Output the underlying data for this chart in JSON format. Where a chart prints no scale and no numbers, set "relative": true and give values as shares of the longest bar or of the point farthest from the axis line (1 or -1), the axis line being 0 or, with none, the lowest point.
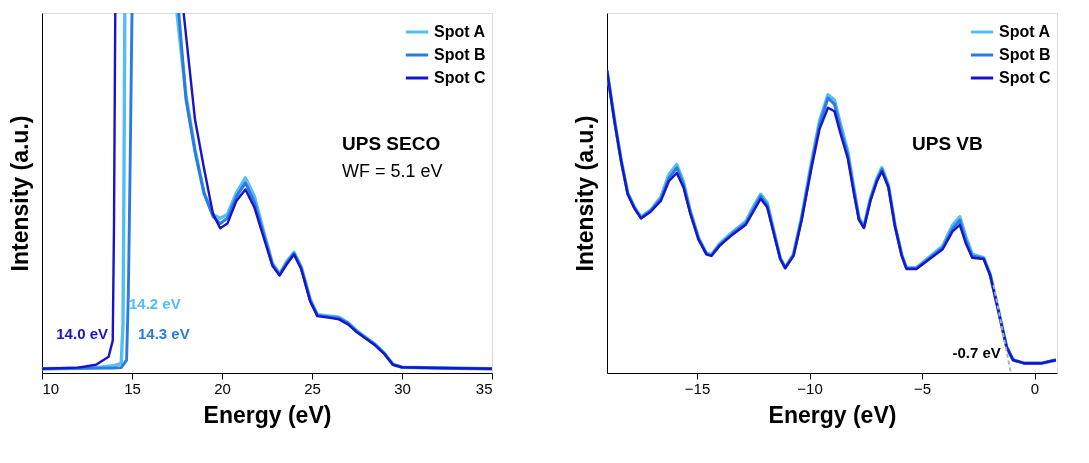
{
  "chart_data": [
    {
      "type": "line",
      "relative": true,
      "xlabel": "Energy (eV)",
      "ylabel": "Intensity (a.u.)",
      "xlim": [
        10,
        35
      ],
      "xticks": [
        10,
        15,
        20,
        25,
        30,
        35
      ],
      "tick_labels": "x",
      "grid": false,
      "legend": "top right",
      "marker": "none",
      "line_style": "solid",
      "annotations": [
        {
          "text": "14.0 eV",
          "x": 14.0,
          "y": 0.02
        },
        "14.2 eV",
        "14.3 eV",
        "UPS SECO",
        "WF = 5.1 eV"
      ],
      "series": [
        {
          "name": "Spot A",
          "color": "#55bdf5",
          "x": [
            10,
            12,
            13,
            14,
            14.4,
            14.5,
            14.55,
            14.6,
            16,
            17.5,
            18.0,
            18.5,
            19,
            19.5,
            19.9,
            20.3,
            20.8,
            21.3,
            21.8,
            22.3,
            22.8,
            23.2,
            23.6,
            24.0,
            24.4,
            24.9,
            25.3,
            26.0,
            26.5,
            27.0,
            27.5,
            28.0,
            28.5,
            29.0,
            29.5,
            30,
            32,
            35
          ],
          "values": [
            0.012,
            0.013,
            0.015,
            0.02,
            0.027,
            0.135,
            0.5,
            1.0,
            null,
            1.0,
            0.77,
            0.62,
            0.5,
            0.44,
            0.43,
            0.44,
            0.5,
            0.542,
            0.49,
            0.395,
            0.305,
            0.275,
            0.31,
            0.335,
            0.295,
            0.205,
            0.162,
            0.158,
            0.155,
            0.14,
            0.117,
            0.098,
            0.08,
            0.056,
            0.024,
            0.016,
            0.014,
            0.012
          ]
        },
        {
          "name": "Spot B",
          "color": "#2a7be0",
          "x": [
            10,
            12,
            14,
            14.4,
            14.7,
            14.8,
            14.9,
            15.0,
            16,
            17.6,
            18.0,
            18.5,
            19,
            19.5,
            19.9,
            20.3,
            20.8,
            21.3,
            21.8,
            22.3,
            22.8,
            23.2,
            23.6,
            24.0,
            24.4,
            24.9,
            25.3,
            26.0,
            26.5,
            27.0,
            27.5,
            28.0,
            28.5,
            29.0,
            29.5,
            30,
            32,
            35
          ],
          "values": [
            0.012,
            0.013,
            0.014,
            0.015,
            0.036,
            0.226,
            0.587,
            1.0,
            null,
            1.0,
            0.76,
            0.615,
            0.5,
            0.435,
            0.415,
            0.43,
            0.49,
            0.528,
            0.475,
            0.388,
            0.302,
            0.273,
            0.306,
            0.332,
            0.292,
            0.202,
            0.16,
            0.156,
            0.152,
            0.138,
            0.115,
            0.097,
            0.079,
            0.055,
            0.023,
            0.016,
            0.014,
            0.012
          ]
        },
        {
          "name": "Spot C",
          "color": "#1a14c8",
          "x": [
            10,
            12,
            13,
            13.7,
            13.93,
            14.0,
            14.07,
            16,
            17.87,
            18.5,
            19,
            19.5,
            19.9,
            20.3,
            20.8,
            21.3,
            21.8,
            22.3,
            22.8,
            23.2,
            23.6,
            24.0,
            24.4,
            24.9,
            25.3,
            26.0,
            26.5,
            27.0,
            27.5,
            28.0,
            28.5,
            29.0,
            29.5,
            30,
            32,
            35
          ],
          "values": [
            0.012,
            0.015,
            0.023,
            0.045,
            0.09,
            0.41,
            1.0,
            null,
            1.0,
            0.704,
            0.569,
            0.442,
            0.402,
            0.415,
            0.478,
            0.51,
            0.46,
            0.379,
            0.298,
            0.271,
            0.302,
            0.329,
            0.289,
            0.199,
            0.158,
            0.153,
            0.149,
            0.135,
            0.113,
            0.095,
            0.077,
            0.054,
            0.023,
            0.016,
            0.014,
            0.012
          ]
        }
      ]
    },
    {
      "type": "line",
      "relative": true,
      "xlabel": "Energy (eV)",
      "ylabel": "Intensity (a.u.)",
      "xlim": [
        -19,
        1
      ],
      "xticks": [
        -15,
        -10,
        -5,
        0
      ],
      "tick_labels": "x",
      "grid": false,
      "legend": "top right",
      "marker": "none",
      "line_style": "solid",
      "annotations": [
        "UPS VB",
        {
          "text": "-0.7 eV",
          "x": -1.05,
          "y": 0.036
        }
      ],
      "x": [
        -19,
        -18.66,
        -18.37,
        -18.08,
        -17.78,
        -17.49,
        -17.06,
        -16.6,
        -16.25,
        -15.9,
        -15.6,
        -15.3,
        -14.93,
        -14.58,
        -14.36,
        -14.0,
        -13.41,
        -12.83,
        -12.46,
        -12.17,
        -11.88,
        -11.59,
        -11.3,
        -11.08,
        -10.71,
        -10.35,
        -9.91,
        -9.55,
        -9.18,
        -8.89,
        -8.6,
        -8.3,
        -8.02,
        -7.8,
        -7.58,
        -7.29,
        -7.0,
        -6.78,
        -6.49,
        -6.2,
        -5.9,
        -5.69,
        -5.25,
        -4.66,
        -4.08,
        -3.64,
        -3.32,
        -3.06,
        -2.77,
        -2.26,
        -1.97,
        -1.6,
        -1.24,
        -0.95,
        -0.44,
        0.29,
        0.95
      ],
      "series": [
        {
          "name": "Spot A",
          "color": "#55bdf5",
          "values": [
            1.0,
            0.834,
            0.703,
            0.596,
            0.548,
            0.515,
            0.539,
            0.582,
            0.656,
            0.689,
            0.632,
            0.536,
            0.447,
            0.396,
            0.391,
            0.427,
            0.467,
            0.501,
            0.554,
            0.591,
            0.563,
            0.471,
            0.381,
            0.348,
            0.393,
            0.515,
            0.697,
            0.834,
            0.92,
            0.902,
            0.816,
            0.733,
            0.608,
            0.513,
            0.484,
            0.578,
            0.644,
            0.679,
            0.62,
            0.489,
            0.391,
            0.348,
            0.348,
            0.384,
            0.42,
            0.489,
            0.516,
            0.453,
            0.393,
            0.381,
            0.327,
            0.205,
            0.087,
            0.043,
            0.032,
            0.032,
            0.043
          ]
        },
        {
          "name": "Spot B",
          "color": "#2a7be0",
          "values": [
            1.0,
            0.831,
            0.701,
            0.594,
            0.546,
            0.513,
            0.536,
            0.576,
            0.644,
            0.678,
            0.622,
            0.532,
            0.443,
            0.393,
            0.389,
            0.423,
            0.462,
            0.495,
            0.546,
            0.584,
            0.555,
            0.466,
            0.379,
            0.347,
            0.39,
            0.51,
            0.688,
            0.822,
            0.909,
            0.888,
            0.801,
            0.721,
            0.6,
            0.509,
            0.482,
            0.573,
            0.639,
            0.673,
            0.616,
            0.486,
            0.389,
            0.346,
            0.346,
            0.38,
            0.414,
            0.477,
            0.505,
            0.441,
            0.387,
            0.379,
            0.324,
            0.204,
            0.086,
            0.043,
            0.032,
            0.032,
            0.043
          ]
        },
        {
          "name": "Spot C",
          "color": "#1a14c8",
          "values": [
            1.0,
            0.828,
            0.7,
            0.591,
            0.544,
            0.511,
            0.533,
            0.57,
            0.634,
            0.661,
            0.613,
            0.527,
            0.441,
            0.392,
            0.387,
            0.42,
            0.458,
            0.49,
            0.538,
            0.576,
            0.548,
            0.462,
            0.377,
            0.347,
            0.387,
            0.505,
            0.678,
            0.807,
            0.877,
            0.865,
            0.785,
            0.71,
            0.591,
            0.505,
            0.479,
            0.57,
            0.634,
            0.667,
            0.613,
            0.484,
            0.387,
            0.344,
            0.344,
            0.377,
            0.409,
            0.468,
            0.49,
            0.43,
            0.381,
            0.377,
            0.323,
            0.204,
            0.086,
            0.043,
            0.032,
            0.032,
            0.043
          ]
        },
        {
          "type": "line",
          "color": "#b0b0b0",
          "line_style": "dashed",
          "x": [
            -1.82,
            -1.05
          ],
          "values": [
            0.291,
            0.0
          ]
        }
      ]
    }
  ]
}
